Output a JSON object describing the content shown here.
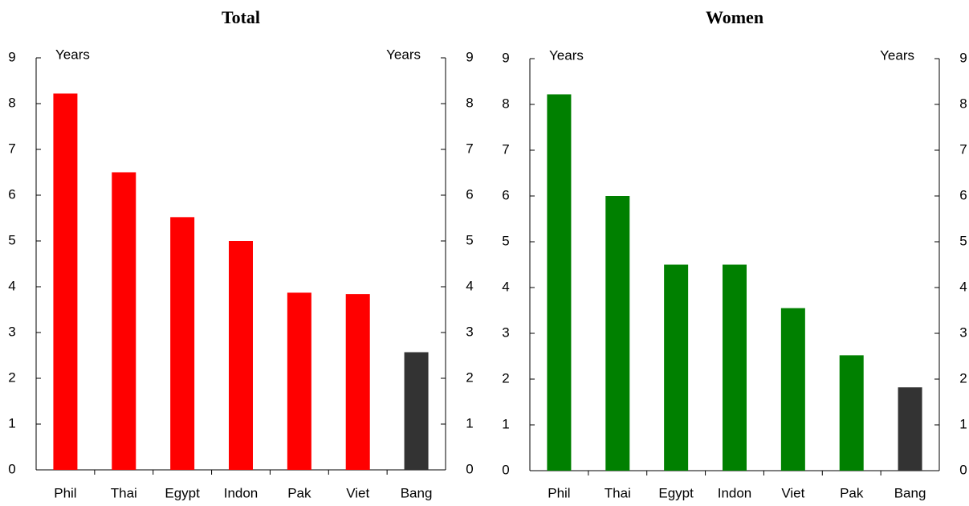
{
  "chart_data": [
    {
      "type": "bar",
      "title": "Total",
      "y_label": "Years",
      "y2_label": "Years",
      "categories": [
        "Phil",
        "Thai",
        "Egypt",
        "Indon",
        "Pak",
        "Viet",
        "Bang"
      ],
      "values": [
        8.22,
        6.5,
        5.52,
        5.0,
        3.87,
        3.84,
        2.57
      ],
      "colors": [
        "#ff0000",
        "#ff0000",
        "#ff0000",
        "#ff0000",
        "#ff0000",
        "#ff0000",
        "#333333"
      ],
      "ylim": [
        0,
        9
      ],
      "yticks": [
        0,
        1,
        2,
        3,
        4,
        5,
        6,
        7,
        8,
        9
      ],
      "y2lim": [
        0,
        9
      ],
      "y2ticks": [
        0,
        1,
        2,
        3,
        4,
        5,
        6,
        7,
        8,
        9
      ]
    },
    {
      "type": "bar",
      "title": "Women",
      "y_label": "Years",
      "y2_label": "Years",
      "categories": [
        "Phil",
        "Thai",
        "Egypt",
        "Indon",
        "Viet",
        "Pak",
        "Bang"
      ],
      "values": [
        8.22,
        6.0,
        4.5,
        4.5,
        3.55,
        2.52,
        1.82
      ],
      "colors": [
        "#008000",
        "#008000",
        "#008000",
        "#008000",
        "#008000",
        "#008000",
        "#333333"
      ],
      "ylim": [
        0,
        9
      ],
      "yticks": [
        0,
        1,
        2,
        3,
        4,
        5,
        6,
        7,
        8,
        9
      ],
      "y2lim": [
        0,
        9
      ],
      "y2ticks": [
        0,
        1,
        2,
        3,
        4,
        5,
        6,
        7,
        8,
        9
      ]
    }
  ]
}
